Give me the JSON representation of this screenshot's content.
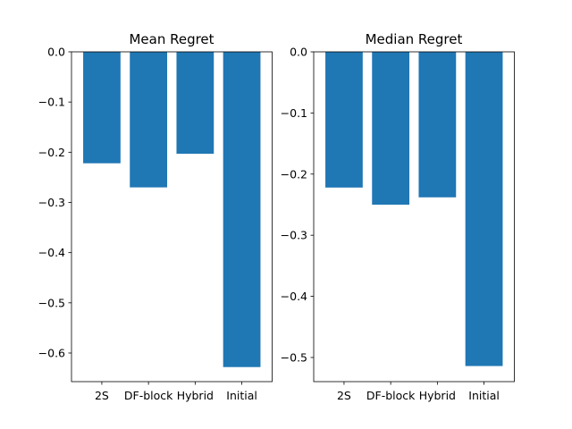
{
  "chart_data": [
    {
      "type": "bar",
      "title": "Mean Regret",
      "categories": [
        "2S",
        "DF-block",
        "Hybrid",
        "Initial"
      ],
      "values": [
        -0.222,
        -0.27,
        -0.203,
        -0.628
      ],
      "ylim": [
        -0.657,
        0.0
      ],
      "yticks": [
        0.0,
        -0.1,
        -0.2,
        -0.3,
        -0.4,
        -0.5,
        -0.6
      ],
      "ytick_labels": [
        "0.0",
        "−0.1",
        "−0.2",
        "−0.3",
        "−0.4",
        "−0.5",
        "−0.6"
      ],
      "xlabel": "",
      "ylabel": "",
      "grid": false,
      "bar_color": "#1f77b4"
    },
    {
      "type": "bar",
      "title": "Median Regret",
      "categories": [
        "2S",
        "DF-block",
        "Hybrid",
        "Initial"
      ],
      "values": [
        -0.222,
        -0.25,
        -0.238,
        -0.514
      ],
      "ylim": [
        -0.5395,
        0.0
      ],
      "yticks": [
        0.0,
        -0.1,
        -0.2,
        -0.3,
        -0.4,
        -0.5
      ],
      "ytick_labels": [
        "0.0",
        "−0.1",
        "−0.2",
        "−0.3",
        "−0.4",
        "−0.5"
      ],
      "xlabel": "",
      "ylabel": "",
      "grid": false,
      "bar_color": "#1f77b4"
    }
  ]
}
